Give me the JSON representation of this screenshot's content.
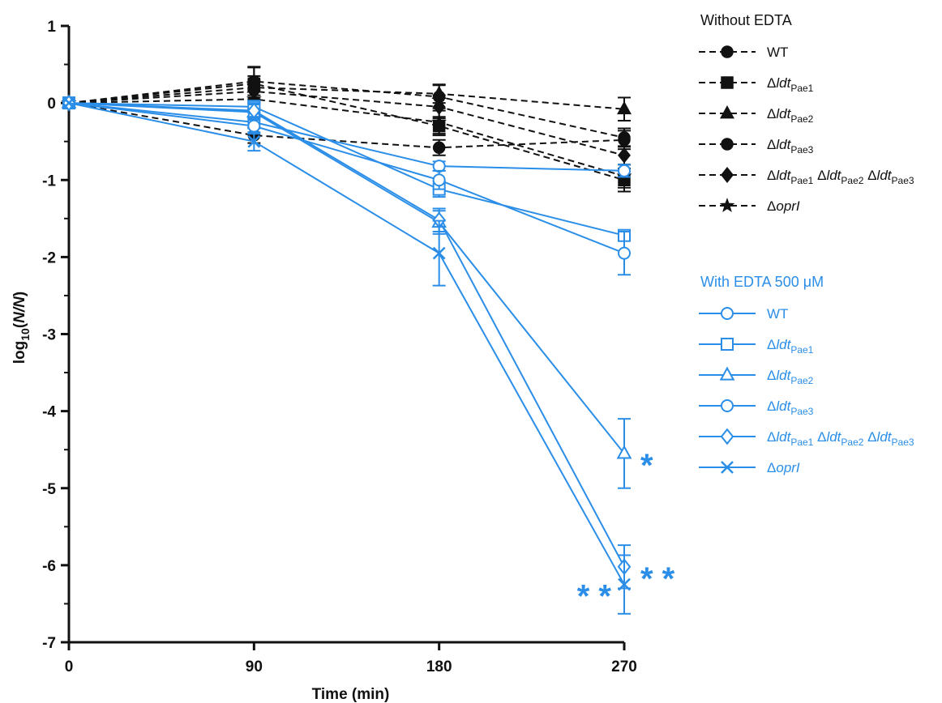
{
  "chart_data": {
    "type": "line",
    "xlabel": "Time (min)",
    "ylabel": {
      "main": "log",
      "sub1": "10",
      "mid": "(",
      "italic": "N/N",
      "end": ")"
    },
    "x": [
      0,
      90,
      180,
      270
    ],
    "xticks": [
      "0",
      "90",
      "180",
      "270"
    ],
    "yticks": [
      "1",
      "0",
      "-1",
      "-2",
      "-3",
      "-4",
      "-5",
      "-6",
      "-7"
    ],
    "xlim": [
      0,
      270
    ],
    "ylim": [
      -7,
      1
    ],
    "grid": false,
    "legend_placement": "right",
    "colors": {
      "without": "#111111",
      "with": "#2a8ee8"
    },
    "groups": [
      {
        "title": "Without EDTA",
        "title_parts": [
          {
            "t": "Without EDTA"
          }
        ],
        "line_style": "dashed",
        "color": "#111111",
        "filled": true,
        "series": [
          {
            "marker": "circle",
            "label": [
              {
                "t": "WT"
              }
            ],
            "values": [
              0,
              0.28,
              0.08,
              -0.45
            ],
            "errors": [
              0,
              0.18,
              0.15,
              0.12
            ]
          },
          {
            "marker": "square",
            "label": [
              {
                "t": "Δ"
              },
              {
                "t": "ldt",
                "i": true
              },
              {
                "t": "Pae1",
                "s": true
              }
            ],
            "values": [
              0,
              0.25,
              -0.3,
              -1.0
            ],
            "errors": [
              0,
              0.22,
              0.12,
              0.15
            ]
          },
          {
            "marker": "triangle",
            "label": [
              {
                "t": "Δ"
              },
              {
                "t": "ldt",
                "i": true
              },
              {
                "t": "Pae2",
                "s": true
              }
            ],
            "values": [
              0,
              0.2,
              0.12,
              -0.08
            ],
            "errors": [
              0,
              0.15,
              0.12,
              0.15
            ]
          },
          {
            "marker": "circle",
            "label": [
              {
                "t": "Δ"
              },
              {
                "t": "ldt",
                "i": true
              },
              {
                "t": "Pae3",
                "s": true
              }
            ],
            "values": [
              0,
              -0.42,
              -0.58,
              -0.48
            ],
            "errors": [
              0,
              0.1,
              0.1,
              0.12
            ]
          },
          {
            "marker": "diamond",
            "label": [
              {
                "t": "Δ"
              },
              {
                "t": "ldt",
                "i": true
              },
              {
                "t": "Pae1",
                "s": true
              },
              {
                "t": " Δ"
              },
              {
                "t": "ldt",
                "i": true
              },
              {
                "t": "Pae2",
                "s": true
              },
              {
                "t": " Δ"
              },
              {
                "t": "ldt",
                "i": true
              },
              {
                "t": "Pae3",
                "s": true
              }
            ],
            "values": [
              0,
              0.15,
              -0.05,
              -0.68
            ],
            "errors": [
              0,
              0.15,
              0.15,
              0.12
            ]
          },
          {
            "marker": "star",
            "label": [
              {
                "t": "Δ"
              },
              {
                "t": "oprI",
                "i": true
              }
            ],
            "values": [
              0,
              0.05,
              -0.25,
              -0.95
            ],
            "errors": [
              0,
              0.12,
              0.15,
              0.15
            ]
          }
        ]
      },
      {
        "title": "With EDTA 500 μM",
        "title_parts": [
          {
            "t": "With EDTA 500 μM"
          }
        ],
        "line_style": "solid",
        "color": "#2a8ee8",
        "filled": false,
        "series": [
          {
            "marker": "circle",
            "label": [
              {
                "t": "WT"
              }
            ],
            "values": [
              0,
              -0.25,
              -0.82,
              -0.88
            ],
            "errors": [
              0,
              0.08,
              0.06,
              0.08
            ]
          },
          {
            "marker": "square",
            "label": [
              {
                "t": "Δ"
              },
              {
                "t": "ldt",
                "i": true
              },
              {
                "t": "Pae1",
                "s": true
              }
            ],
            "values": [
              0,
              -0.05,
              -1.12,
              -1.72
            ],
            "errors": [
              0,
              0.08,
              0.1,
              0.06
            ]
          },
          {
            "marker": "triangle",
            "label": [
              {
                "t": "Δ"
              },
              {
                "t": "ldt",
                "i": true
              },
              {
                "t": "Pae2",
                "s": true
              }
            ],
            "values": [
              0,
              -0.12,
              -1.55,
              -4.55
            ],
            "errors": [
              0,
              0.1,
              0.15,
              0.45
            ]
          },
          {
            "marker": "circle",
            "label": [
              {
                "t": "Δ"
              },
              {
                "t": "ldt",
                "i": true
              },
              {
                "t": "Pae3",
                "s": true
              }
            ],
            "values": [
              0,
              -0.3,
              -1.0,
              -1.95
            ],
            "errors": [
              0,
              0.1,
              0.12,
              0.28
            ]
          },
          {
            "marker": "diamond",
            "label": [
              {
                "t": "Δ"
              },
              {
                "t": "ldt",
                "i": true
              },
              {
                "t": "Pae1",
                "s": true
              },
              {
                "t": " Δ"
              },
              {
                "t": "ldt",
                "i": true
              },
              {
                "t": "Pae2",
                "s": true
              },
              {
                "t": " Δ"
              },
              {
                "t": "ldt",
                "i": true
              },
              {
                "t": "Pae3",
                "s": true
              }
            ],
            "values": [
              0,
              -0.1,
              -1.52,
              -6.02
            ],
            "errors": [
              0,
              0.1,
              0.15,
              0.28
            ]
          },
          {
            "marker": "x",
            "label": [
              {
                "t": "Δ"
              },
              {
                "t": "oprI",
                "i": true
              }
            ],
            "values": [
              0,
              -0.5,
              -1.95,
              -6.25
            ],
            "errors": [
              0,
              0.12,
              0.42,
              0.38
            ]
          }
        ]
      }
    ],
    "annotations": [
      {
        "text": "*",
        "x": 270,
        "y": -4.55,
        "anchor": "right"
      },
      {
        "text": "* *",
        "x": 270,
        "y": -6.02,
        "anchor": "right"
      },
      {
        "text": "* *",
        "x": 270,
        "y": -6.25,
        "anchor": "left"
      }
    ]
  }
}
